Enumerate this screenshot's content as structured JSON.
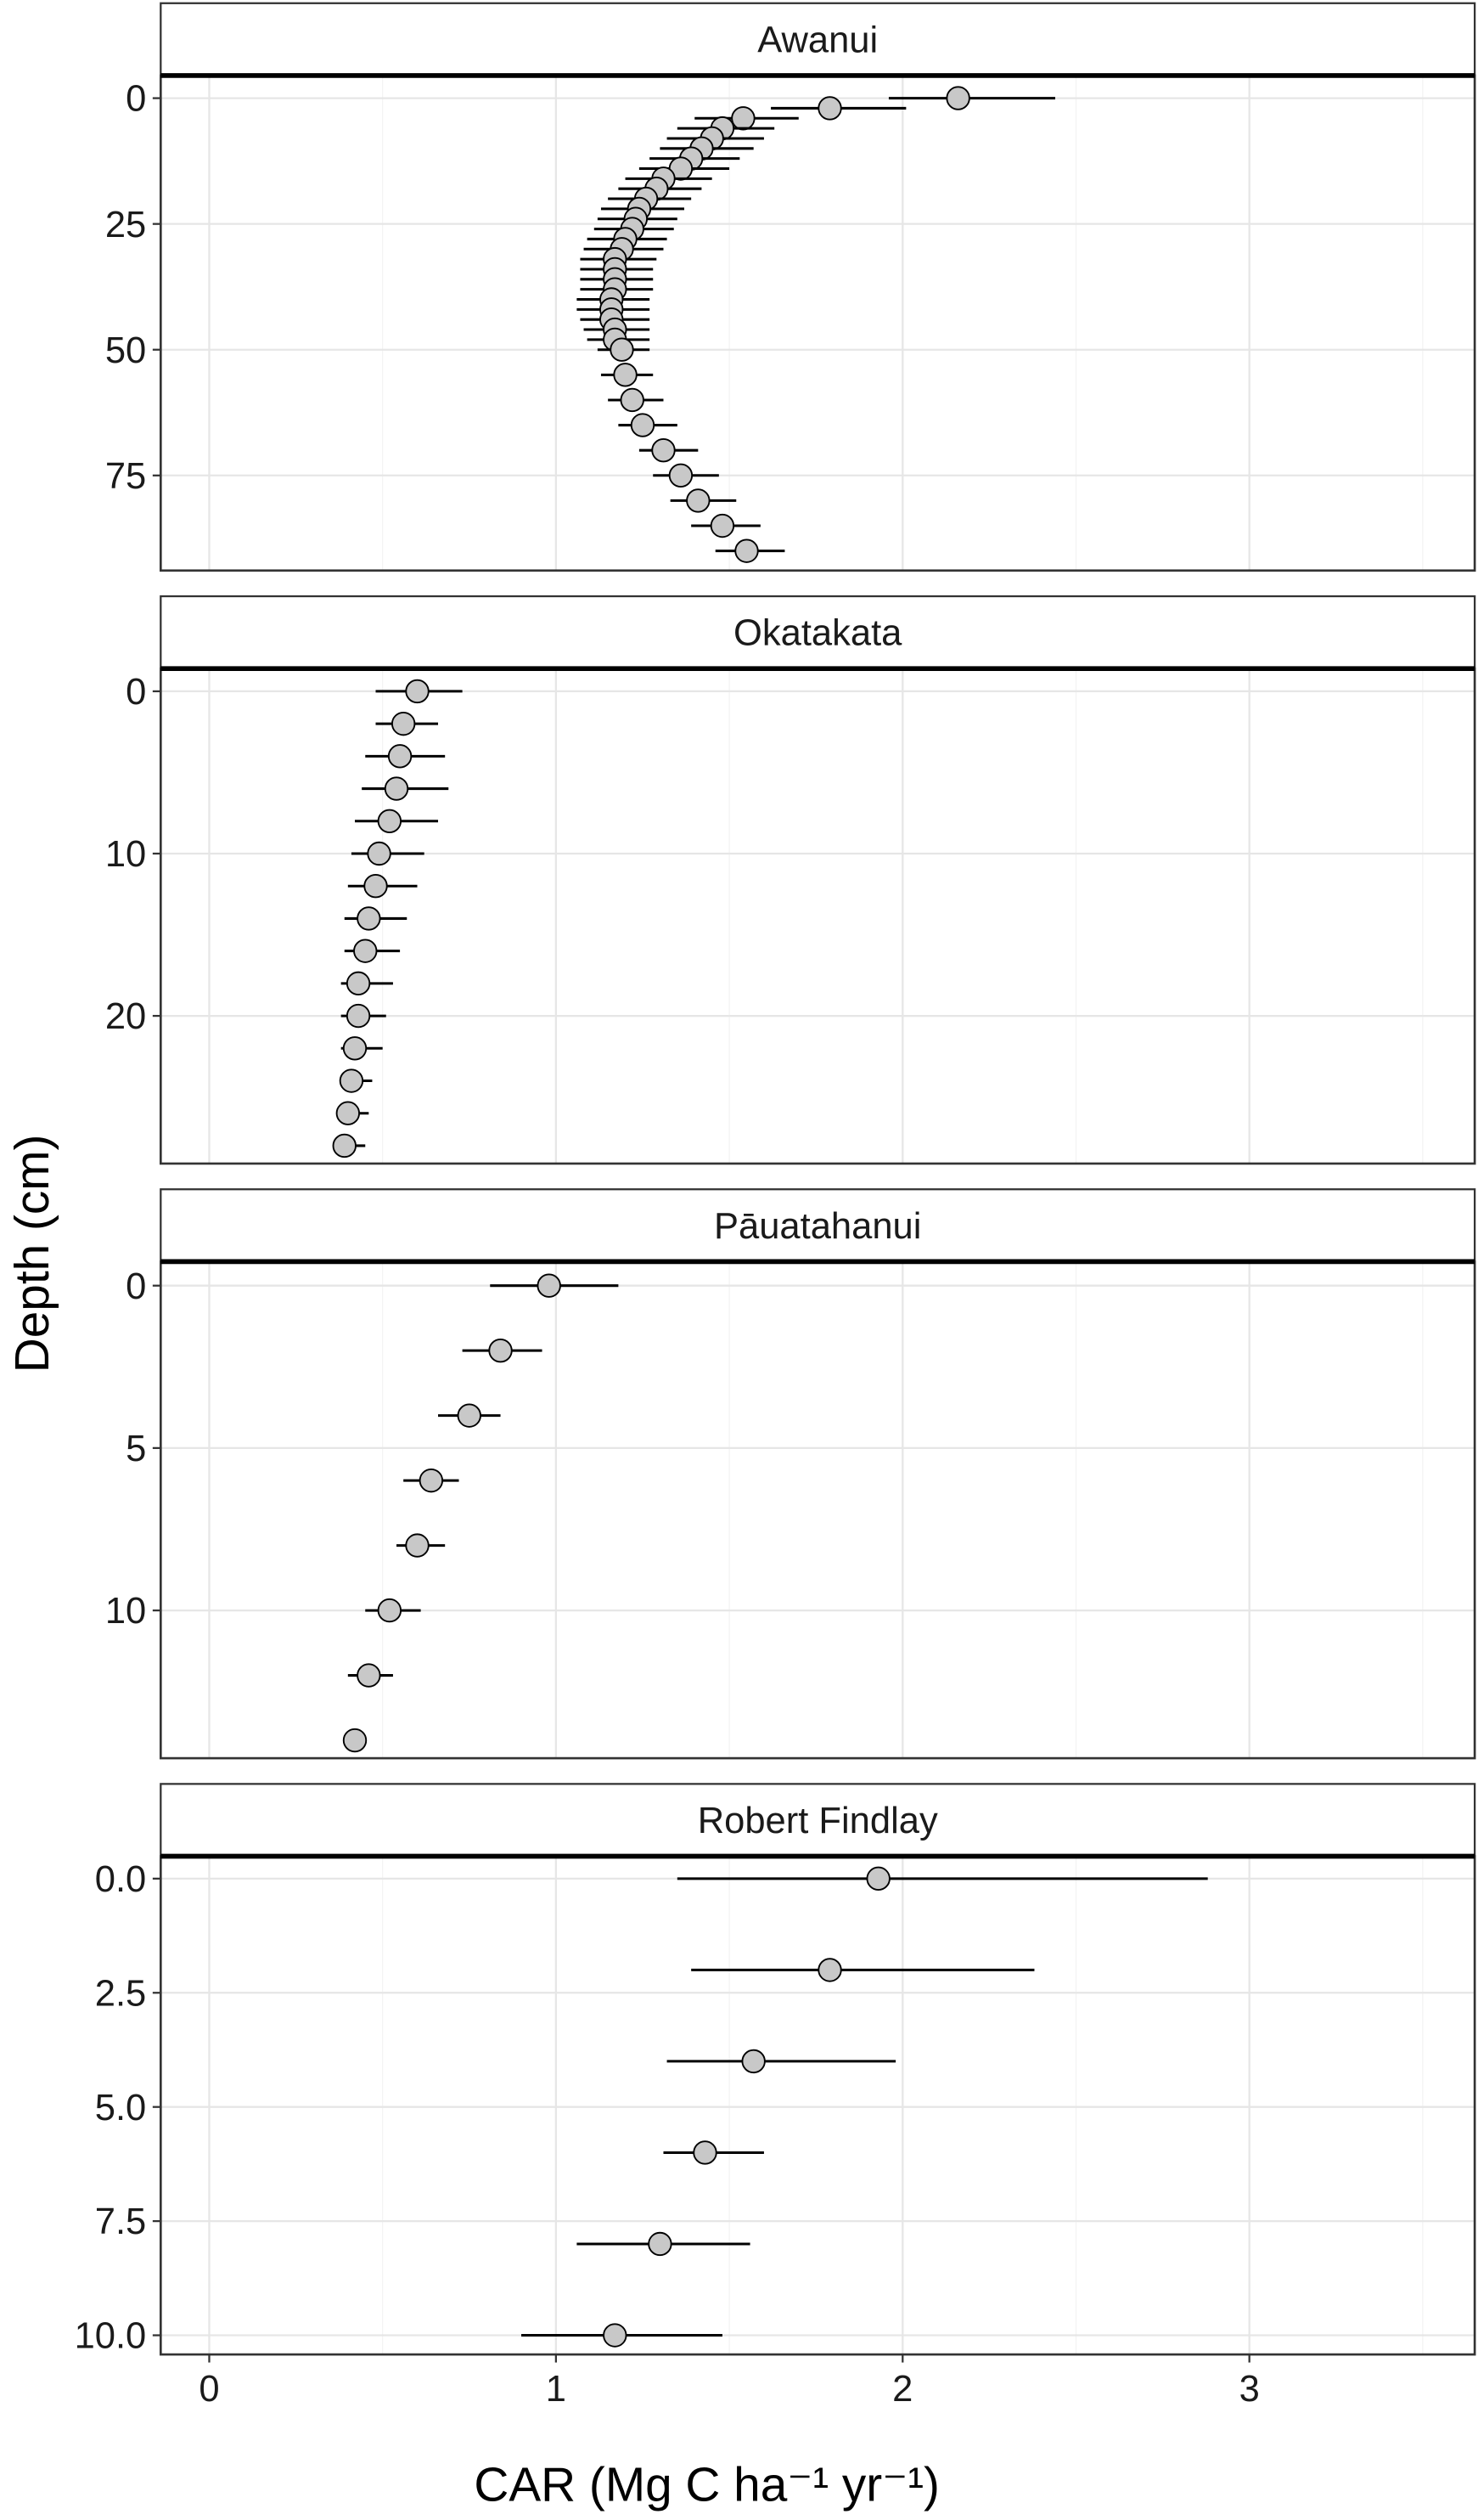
{
  "chart_data": {
    "type": "scatter",
    "layout": "faceted-vertical",
    "xlabel": "CAR (Mg C ha⁻¹ yr⁻¹)",
    "ylabel": "Depth (cm)",
    "xlim": [
      -0.14,
      3.65
    ],
    "xticks": [
      0,
      1,
      2,
      3
    ],
    "grid": true,
    "point_color": "#c8c8c8",
    "panels": [
      {
        "title": "Awanui",
        "ylim": [
          -4.5,
          93.9
        ],
        "yticks": [
          0,
          25,
          50,
          75
        ],
        "ytick_labels": [
          "0",
          "25",
          "50",
          "75"
        ],
        "points": [
          {
            "depth": 0,
            "car": 2.16,
            "lo": 1.96,
            "hi": 2.44
          },
          {
            "depth": 2,
            "car": 1.79,
            "lo": 1.62,
            "hi": 2.01
          },
          {
            "depth": 4,
            "car": 1.54,
            "lo": 1.4,
            "hi": 1.7
          },
          {
            "depth": 6,
            "car": 1.48,
            "lo": 1.35,
            "hi": 1.63
          },
          {
            "depth": 8,
            "car": 1.45,
            "lo": 1.32,
            "hi": 1.6
          },
          {
            "depth": 10,
            "car": 1.42,
            "lo": 1.3,
            "hi": 1.57
          },
          {
            "depth": 12,
            "car": 1.39,
            "lo": 1.27,
            "hi": 1.53
          },
          {
            "depth": 14,
            "car": 1.36,
            "lo": 1.24,
            "hi": 1.5
          },
          {
            "depth": 16,
            "car": 1.31,
            "lo": 1.2,
            "hi": 1.45
          },
          {
            "depth": 18,
            "car": 1.29,
            "lo": 1.18,
            "hi": 1.42
          },
          {
            "depth": 20,
            "car": 1.26,
            "lo": 1.15,
            "hi": 1.39
          },
          {
            "depth": 22,
            "car": 1.24,
            "lo": 1.13,
            "hi": 1.37
          },
          {
            "depth": 24,
            "car": 1.23,
            "lo": 1.12,
            "hi": 1.35
          },
          {
            "depth": 26,
            "car": 1.22,
            "lo": 1.11,
            "hi": 1.34
          },
          {
            "depth": 28,
            "car": 1.2,
            "lo": 1.09,
            "hi": 1.32
          },
          {
            "depth": 30,
            "car": 1.19,
            "lo": 1.08,
            "hi": 1.31
          },
          {
            "depth": 32,
            "car": 1.17,
            "lo": 1.07,
            "hi": 1.29
          },
          {
            "depth": 34,
            "car": 1.17,
            "lo": 1.07,
            "hi": 1.28
          },
          {
            "depth": 36,
            "car": 1.17,
            "lo": 1.07,
            "hi": 1.28
          },
          {
            "depth": 38,
            "car": 1.17,
            "lo": 1.07,
            "hi": 1.28
          },
          {
            "depth": 40,
            "car": 1.16,
            "lo": 1.06,
            "hi": 1.27
          },
          {
            "depth": 42,
            "car": 1.16,
            "lo": 1.06,
            "hi": 1.27
          },
          {
            "depth": 44,
            "car": 1.16,
            "lo": 1.07,
            "hi": 1.27
          },
          {
            "depth": 46,
            "car": 1.17,
            "lo": 1.08,
            "hi": 1.27
          },
          {
            "depth": 48,
            "car": 1.17,
            "lo": 1.09,
            "hi": 1.27
          },
          {
            "depth": 50,
            "car": 1.19,
            "lo": 1.12,
            "hi": 1.27
          },
          {
            "depth": 55,
            "car": 1.2,
            "lo": 1.13,
            "hi": 1.28
          },
          {
            "depth": 60,
            "car": 1.22,
            "lo": 1.15,
            "hi": 1.31
          },
          {
            "depth": 65,
            "car": 1.25,
            "lo": 1.18,
            "hi": 1.35
          },
          {
            "depth": 70,
            "car": 1.31,
            "lo": 1.24,
            "hi": 1.41
          },
          {
            "depth": 75,
            "car": 1.36,
            "lo": 1.28,
            "hi": 1.47
          },
          {
            "depth": 80,
            "car": 1.41,
            "lo": 1.33,
            "hi": 1.52
          },
          {
            "depth": 85,
            "car": 1.48,
            "lo": 1.39,
            "hi": 1.59
          },
          {
            "depth": 90,
            "car": 1.55,
            "lo": 1.46,
            "hi": 1.66
          }
        ]
      },
      {
        "title": "Okatakata",
        "ylim": [
          -1.4,
          29.1
        ],
        "yticks": [
          0,
          10,
          20
        ],
        "ytick_labels": [
          "0",
          "10",
          "20"
        ],
        "points": [
          {
            "depth": 0,
            "car": 0.6,
            "lo": 0.48,
            "hi": 0.73
          },
          {
            "depth": 2,
            "car": 0.56,
            "lo": 0.48,
            "hi": 0.66
          },
          {
            "depth": 4,
            "car": 0.55,
            "lo": 0.45,
            "hi": 0.68
          },
          {
            "depth": 6,
            "car": 0.54,
            "lo": 0.44,
            "hi": 0.69
          },
          {
            "depth": 8,
            "car": 0.52,
            "lo": 0.42,
            "hi": 0.66
          },
          {
            "depth": 10,
            "car": 0.49,
            "lo": 0.41,
            "hi": 0.62
          },
          {
            "depth": 12,
            "car": 0.48,
            "lo": 0.4,
            "hi": 0.6
          },
          {
            "depth": 14,
            "car": 0.46,
            "lo": 0.39,
            "hi": 0.57
          },
          {
            "depth": 16,
            "car": 0.45,
            "lo": 0.39,
            "hi": 0.55
          },
          {
            "depth": 18,
            "car": 0.43,
            "lo": 0.38,
            "hi": 0.53
          },
          {
            "depth": 20,
            "car": 0.43,
            "lo": 0.38,
            "hi": 0.51
          },
          {
            "depth": 22,
            "car": 0.42,
            "lo": 0.38,
            "hi": 0.5
          },
          {
            "depth": 24,
            "car": 0.41,
            "lo": 0.38,
            "hi": 0.47
          },
          {
            "depth": 26,
            "car": 0.4,
            "lo": 0.37,
            "hi": 0.46
          },
          {
            "depth": 28,
            "car": 0.39,
            "lo": 0.36,
            "hi": 0.45
          }
        ]
      },
      {
        "title": "Pāuatahanui",
        "ylim": [
          -0.74,
          14.55
        ],
        "yticks": [
          0,
          5,
          10
        ],
        "ytick_labels": [
          "0",
          "5",
          "10"
        ],
        "points": [
          {
            "depth": 0,
            "car": 0.98,
            "lo": 0.81,
            "hi": 1.18
          },
          {
            "depth": 2,
            "car": 0.84,
            "lo": 0.73,
            "hi": 0.96
          },
          {
            "depth": 4,
            "car": 0.75,
            "lo": 0.66,
            "hi": 0.84
          },
          {
            "depth": 6,
            "car": 0.64,
            "lo": 0.56,
            "hi": 0.72
          },
          {
            "depth": 8,
            "car": 0.6,
            "lo": 0.54,
            "hi": 0.68
          },
          {
            "depth": 10,
            "car": 0.52,
            "lo": 0.45,
            "hi": 0.61
          },
          {
            "depth": 12,
            "car": 0.46,
            "lo": 0.4,
            "hi": 0.53
          },
          {
            "depth": 14,
            "car": 0.42,
            "lo": 0.42,
            "hi": 0.42
          }
        ]
      },
      {
        "title": "Robert Findlay",
        "ylim": [
          -0.49,
          10.42
        ],
        "yticks": [
          0,
          2.5,
          5,
          7.5,
          10
        ],
        "ytick_labels": [
          "0.0",
          "2.5",
          "5.0",
          "7.5",
          "10.0"
        ],
        "points": [
          {
            "depth": 0,
            "car": 1.93,
            "lo": 1.35,
            "hi": 2.88
          },
          {
            "depth": 2,
            "car": 1.79,
            "lo": 1.39,
            "hi": 2.38
          },
          {
            "depth": 4,
            "car": 1.57,
            "lo": 1.32,
            "hi": 1.98
          },
          {
            "depth": 6,
            "car": 1.43,
            "lo": 1.31,
            "hi": 1.6
          },
          {
            "depth": 8,
            "car": 1.3,
            "lo": 1.06,
            "hi": 1.56
          },
          {
            "depth": 10,
            "car": 1.17,
            "lo": 0.9,
            "hi": 1.48
          }
        ]
      }
    ]
  }
}
